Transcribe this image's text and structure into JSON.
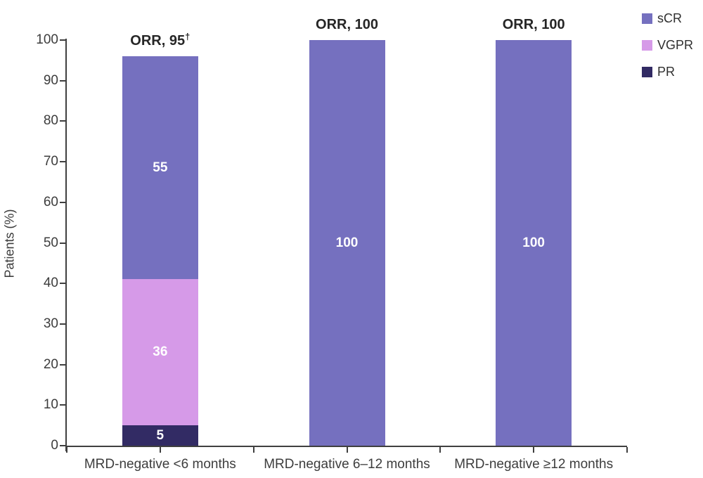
{
  "chart_data": {
    "type": "bar",
    "stacked": true,
    "title": "",
    "xlabel": "",
    "ylabel": "Patients (%)",
    "ylim": [
      0,
      100
    ],
    "yticks": [
      0,
      10,
      20,
      30,
      40,
      50,
      60,
      70,
      80,
      90,
      100
    ],
    "grid": false,
    "legend_position": "top-right",
    "categories": [
      "MRD-negative <6 months",
      "MRD-negative 6–12 months",
      "MRD-negative ≥12 months"
    ],
    "series": [
      {
        "name": "PR",
        "color": "#322b64",
        "values": [
          5,
          0,
          0
        ]
      },
      {
        "name": "VGPR",
        "color": "#d69ae8",
        "values": [
          36,
          0,
          0
        ]
      },
      {
        "name": "sCR",
        "color": "#7570bf",
        "values": [
          55,
          100,
          100
        ]
      }
    ],
    "bar_value_labels": [
      [
        "5",
        "36",
        "55"
      ],
      [
        "100"
      ],
      [
        "100"
      ]
    ],
    "annotations": [
      {
        "text": "ORR, 95",
        "sup": "†"
      },
      {
        "text": "ORR, 100",
        "sup": ""
      },
      {
        "text": "ORR, 100",
        "sup": ""
      }
    ],
    "legend": [
      {
        "label": "sCR",
        "color": "#7570bf"
      },
      {
        "label": "VGPR",
        "color": "#d69ae8"
      },
      {
        "label": "PR",
        "color": "#322b64"
      }
    ],
    "colors": {
      "axis": "#3f3f3f",
      "tick_text": "#3c3c3c",
      "annotation_text": "#262626",
      "segment_text": "#ffffff"
    }
  }
}
